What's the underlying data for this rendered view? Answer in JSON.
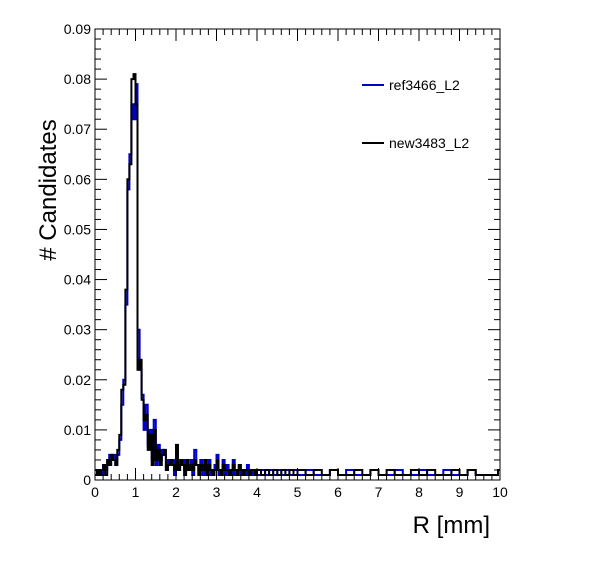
{
  "chart_data": {
    "type": "line",
    "style": "step-histogram",
    "xlabel": "R [mm]",
    "ylabel": "# Candidates",
    "xlim": [
      0,
      10
    ],
    "ylim": [
      0,
      0.09
    ],
    "x_ticks": [
      "0",
      "1",
      "2",
      "3",
      "4",
      "5",
      "6",
      "7",
      "8",
      "9",
      "10"
    ],
    "y_ticks": [
      "0",
      "0.01",
      "0.02",
      "0.03",
      "0.04",
      "0.05",
      "0.06",
      "0.07",
      "0.08",
      "0.09"
    ],
    "grid": false,
    "legend_position": "top-right",
    "bin_width": 0.05,
    "series": [
      {
        "name": "ref3466_L2",
        "color": "#0000cc",
        "x": [
          0,
          0.05,
          0.1,
          0.15,
          0.2,
          0.25,
          0.3,
          0.35,
          0.4,
          0.45,
          0.5,
          0.55,
          0.6,
          0.65,
          0.7,
          0.75,
          0.8,
          0.85,
          0.9,
          0.95,
          1.0,
          1.05,
          1.1,
          1.15,
          1.2,
          1.25,
          1.3,
          1.35,
          1.4,
          1.45,
          1.5,
          1.55,
          1.6,
          1.65,
          1.7,
          1.75,
          1.8,
          1.85,
          1.9,
          1.95,
          2.0,
          2.05,
          2.1,
          2.15,
          2.2,
          2.25,
          2.3,
          2.35,
          2.4,
          2.45,
          2.5,
          2.55,
          2.6,
          2.65,
          2.7,
          2.75,
          2.8,
          2.85,
          2.9,
          2.95,
          3.0,
          3.05,
          3.1,
          3.15,
          3.2,
          3.25,
          3.3,
          3.35,
          3.4,
          3.45,
          3.5,
          3.55,
          3.6,
          3.65,
          3.7,
          3.75,
          3.8,
          3.85,
          3.9,
          3.95,
          4.0,
          4.1,
          4.2,
          4.3,
          4.4,
          4.5,
          4.6,
          4.7,
          4.8,
          4.9,
          5.0,
          5.2,
          5.4,
          5.6,
          5.8,
          6.0,
          6.2,
          6.4,
          6.6,
          6.8,
          7.0,
          7.2,
          7.4,
          7.6,
          7.8,
          8.0,
          8.2,
          8.4,
          8.6,
          8.8,
          9.0,
          9.2,
          9.4,
          9.6,
          9.8,
          9.95
        ],
        "y": [
          0.002,
          0.001,
          0.002,
          0.001,
          0.003,
          0.002,
          0.004,
          0.005,
          0.004,
          0.005,
          0.003,
          0.005,
          0.008,
          0.015,
          0.02,
          0.035,
          0.058,
          0.065,
          0.075,
          0.072,
          0.079,
          0.03,
          0.022,
          0.017,
          0.01,
          0.015,
          0.007,
          0.01,
          0.004,
          0.012,
          0.003,
          0.007,
          0.004,
          0.006,
          0.005,
          0.002,
          0.004,
          0.003,
          0.004,
          0.001,
          0.006,
          0.002,
          0.003,
          0.004,
          0.002,
          0.003,
          0.002,
          0.004,
          0.001,
          0.006,
          0.003,
          0.002,
          0.004,
          0.001,
          0.003,
          0.002,
          0.004,
          0.001,
          0.002,
          0.003,
          0.005,
          0.001,
          0.002,
          0.004,
          0.001,
          0.003,
          0.002,
          0.001,
          0.004,
          0.001,
          0.002,
          0.003,
          0.001,
          0.002,
          0.001,
          0.003,
          0.001,
          0.002,
          0.001,
          0.002,
          0.001,
          0.002,
          0.001,
          0.002,
          0.001,
          0.002,
          0.001,
          0.002,
          0.001,
          0.002,
          0.001,
          0.002,
          0.001,
          0.001,
          0.002,
          0.001,
          0.002,
          0.001,
          0.001,
          0.002,
          0.001,
          0.001,
          0.002,
          0.001,
          0.001,
          0.002,
          0.001,
          0.001,
          0.002,
          0.001,
          0.001,
          0.002,
          0.001,
          0.001,
          0.001,
          0.002
        ]
      },
      {
        "name": "new3483_L2",
        "color": "#000000",
        "x": [
          0,
          0.05,
          0.1,
          0.15,
          0.2,
          0.25,
          0.3,
          0.35,
          0.4,
          0.45,
          0.5,
          0.55,
          0.6,
          0.65,
          0.7,
          0.75,
          0.8,
          0.85,
          0.9,
          0.95,
          1.0,
          1.05,
          1.1,
          1.15,
          1.2,
          1.25,
          1.3,
          1.35,
          1.4,
          1.45,
          1.5,
          1.55,
          1.6,
          1.65,
          1.7,
          1.75,
          1.8,
          1.85,
          1.9,
          1.95,
          2.0,
          2.05,
          2.1,
          2.15,
          2.2,
          2.25,
          2.3,
          2.35,
          2.4,
          2.45,
          2.5,
          2.55,
          2.6,
          2.65,
          2.7,
          2.75,
          2.8,
          2.85,
          2.9,
          2.95,
          3.0,
          3.05,
          3.1,
          3.15,
          3.2,
          3.25,
          3.3,
          3.35,
          3.4,
          3.45,
          3.5,
          3.55,
          3.6,
          3.65,
          3.7,
          3.75,
          3.8,
          3.85,
          3.9,
          3.95,
          4.0,
          4.1,
          4.2,
          4.3,
          4.4,
          4.5,
          4.6,
          4.7,
          4.8,
          4.9,
          5.0,
          5.2,
          5.4,
          5.6,
          5.8,
          6.0,
          6.2,
          6.4,
          6.6,
          6.8,
          7.0,
          7.2,
          7.4,
          7.6,
          7.8,
          8.0,
          8.2,
          8.4,
          8.6,
          8.8,
          9.0,
          9.2,
          9.4,
          9.6,
          9.8,
          9.95
        ],
        "y": [
          0.001,
          0.002,
          0.001,
          0.002,
          0.003,
          0.001,
          0.004,
          0.003,
          0.005,
          0.004,
          0.003,
          0.006,
          0.009,
          0.018,
          0.019,
          0.038,
          0.06,
          0.063,
          0.08,
          0.081,
          0.075,
          0.022,
          0.024,
          0.016,
          0.012,
          0.013,
          0.006,
          0.009,
          0.003,
          0.01,
          0.004,
          0.006,
          0.003,
          0.005,
          0.006,
          0.002,
          0.003,
          0.004,
          0.003,
          0.002,
          0.007,
          0.002,
          0.004,
          0.003,
          0.001,
          0.004,
          0.002,
          0.003,
          0.002,
          0.004,
          0.003,
          0.001,
          0.003,
          0.002,
          0.004,
          0.001,
          0.003,
          0.002,
          0.001,
          0.002,
          0.004,
          0.002,
          0.001,
          0.003,
          0.002,
          0.002,
          0.001,
          0.002,
          0.003,
          0.002,
          0.001,
          0.003,
          0.002,
          0.001,
          0.002,
          0.002,
          0.001,
          0.002,
          0.002,
          0.001,
          0.002,
          0.001,
          0.002,
          0.001,
          0.002,
          0.001,
          0.002,
          0.001,
          0.002,
          0.001,
          0.002,
          0.001,
          0.002,
          0.001,
          0.002,
          0.001,
          0.001,
          0.002,
          0.001,
          0.002,
          0.001,
          0.002,
          0.001,
          0.001,
          0.002,
          0.001,
          0.002,
          0.001,
          0.001,
          0.002,
          0.001,
          0.002,
          0.001,
          0.001,
          0.001,
          0.002
        ]
      }
    ]
  }
}
